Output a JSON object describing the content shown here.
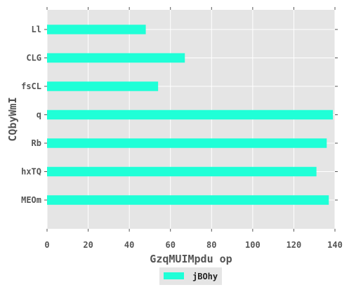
{
  "chart_data": {
    "type": "bar",
    "orientation": "horizontal",
    "categories": [
      "Ll",
      "CLG",
      "fsCL",
      "q",
      "Rb",
      "hxTQ",
      "MEOm"
    ],
    "series": [
      {
        "name": "jBOhy",
        "values": [
          48,
          67,
          54,
          139,
          136,
          131,
          137
        ],
        "color": "#1fffd7"
      }
    ],
    "xlabel": "GzqMUIMpdu op",
    "ylabel": "CQbyWmI",
    "xlim": [
      0,
      140
    ],
    "xticks": [
      0,
      20,
      40,
      60,
      80,
      100,
      120,
      140
    ],
    "grid": true,
    "legend_position": "bottom-center",
    "background_color": "#e5e5e5",
    "grid_color": "#ffffff"
  }
}
